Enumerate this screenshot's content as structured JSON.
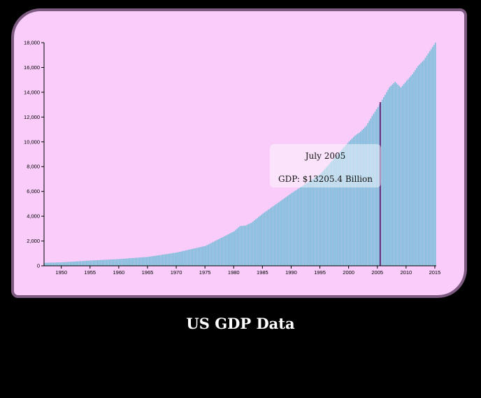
{
  "page": {
    "title": "US GDP Data"
  },
  "tooltip": {
    "date": "July 2005",
    "gdp": "GDP: $13205.4 Billion"
  },
  "highlight": {
    "x": 2005.5,
    "y": 13205.4
  },
  "colors": {
    "card": "#f9ccf9",
    "border": "#7d5a80",
    "bar": "#7fbfdc",
    "highlight": "#6a2a7a"
  },
  "chart_data": {
    "type": "bar",
    "xlim": [
      1947,
      2015.25
    ],
    "ylim": [
      0,
      18000
    ],
    "x_ticks": [
      "1950",
      "1955",
      "1960",
      "1965",
      "1970",
      "1975",
      "1980",
      "1985",
      "1990",
      "1995",
      "2000",
      "2005",
      "2010",
      "2015"
    ],
    "y_ticks": [
      "0",
      "2,000",
      "4,000",
      "6,000",
      "8,000",
      "10,000",
      "12,000",
      "14,000",
      "16,000",
      "18,000"
    ],
    "grid": false,
    "legend": "none",
    "interval": "quarterly",
    "anchor_points": [
      [
        1947,
        243
      ],
      [
        1950,
        280
      ],
      [
        1955,
        426
      ],
      [
        1960,
        543
      ],
      [
        1965,
        719
      ],
      [
        1970,
        1073
      ],
      [
        1975,
        1606
      ],
      [
        1980,
        2790
      ],
      [
        1981,
        3200
      ],
      [
        1982,
        3250
      ],
      [
        1983,
        3480
      ],
      [
        1985,
        4220
      ],
      [
        1990,
        5870
      ],
      [
        1995,
        7415
      ],
      [
        2000,
        10030
      ],
      [
        2001,
        10500
      ],
      [
        2002,
        10830
      ],
      [
        2003,
        11300
      ],
      [
        2004,
        12090
      ],
      [
        2005,
        12800
      ],
      [
        2005.5,
        13205.4
      ],
      [
        2006,
        13600
      ],
      [
        2007,
        14400
      ],
      [
        2008,
        14840
      ],
      [
        2009,
        14380
      ],
      [
        2010,
        14930
      ],
      [
        2011,
        15450
      ],
      [
        2012,
        16130
      ],
      [
        2013,
        16600
      ],
      [
        2014,
        17300
      ],
      [
        2015,
        18000
      ]
    ]
  }
}
